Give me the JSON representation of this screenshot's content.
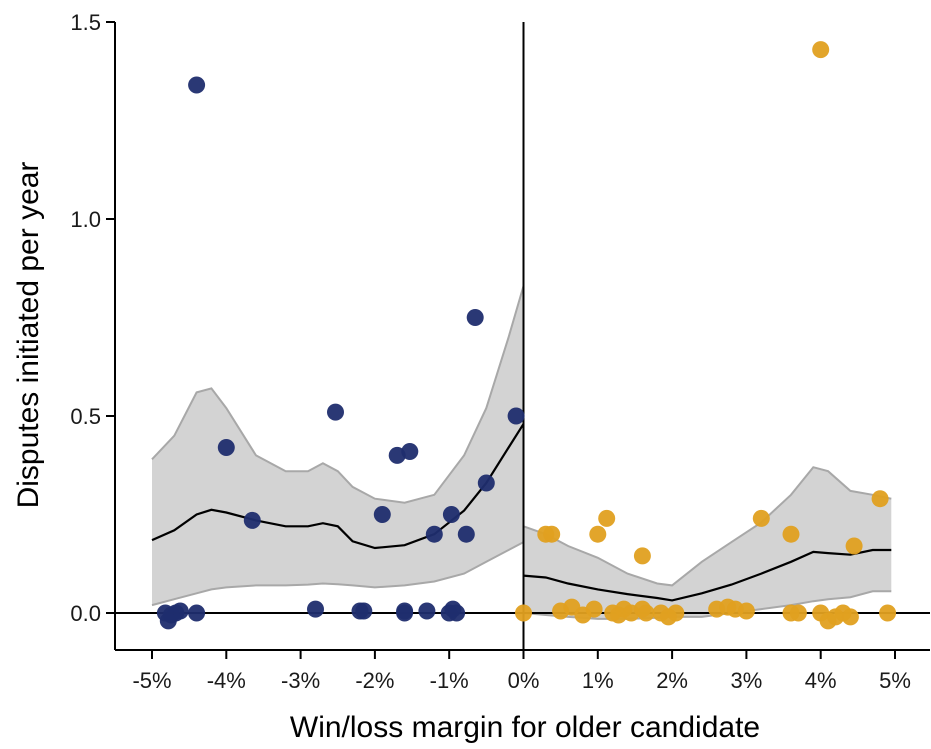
{
  "chart_data": {
    "type": "scatter",
    "title": "",
    "xlabel": "Win/loss margin for older candidate",
    "ylabel": "Disputes initiated per year",
    "xlim": [
      -5.5,
      5.5
    ],
    "ylim": [
      -0.09,
      1.5
    ],
    "x_ticks": [
      -5,
      -4,
      -3,
      -2,
      -1,
      0,
      1,
      2,
      3,
      4,
      5
    ],
    "x_tick_labels": [
      "-5%",
      "-4%",
      "-3%",
      "-2%",
      "-1%",
      "0%",
      "1%",
      "2%",
      "3%",
      "4%",
      "5%"
    ],
    "y_ticks": [
      0.0,
      0.5,
      1.0,
      1.5
    ],
    "y_tick_labels": [
      "0.0",
      "0.5",
      "1.0",
      "1.5"
    ],
    "grid": false,
    "legend": "none",
    "colors": {
      "loss": "#1f2d6e",
      "win": "#e0a020",
      "band_fill": "#d3d3d3",
      "band_edge": "#a8a8a8",
      "fit_line": "#000000"
    },
    "series": [
      {
        "side": "loss",
        "points": [
          [
            -4.4,
            1.34
          ],
          [
            -4.0,
            0.42
          ],
          [
            -3.65,
            0.235
          ],
          [
            -2.53,
            0.51
          ],
          [
            -1.7,
            0.4
          ],
          [
            -1.53,
            0.41
          ],
          [
            -1.9,
            0.25
          ],
          [
            -1.2,
            0.2
          ],
          [
            -0.97,
            0.25
          ],
          [
            -0.77,
            0.2
          ],
          [
            -0.65,
            0.75
          ],
          [
            -0.5,
            0.33
          ],
          [
            -0.1,
            0.5
          ],
          [
            -2.8,
            0.01
          ],
          [
            -2.2,
            0.005
          ],
          [
            -2.15,
            0.005
          ],
          [
            -1.6,
            0.0
          ],
          [
            -1.6,
            0.005
          ],
          [
            -1.3,
            0.005
          ],
          [
            -1.0,
            0.0
          ],
          [
            -0.95,
            0.01
          ],
          [
            -0.9,
            0.0
          ],
          [
            -4.4,
            0.0
          ],
          [
            -4.62,
            0.005
          ],
          [
            -4.68,
            0.0
          ],
          [
            -4.74,
            -0.005
          ],
          [
            -4.78,
            -0.02
          ],
          [
            -4.82,
            0.0
          ]
        ]
      },
      {
        "side": "win",
        "points": [
          [
            4.0,
            1.43
          ],
          [
            0.3,
            0.2
          ],
          [
            0.38,
            0.2
          ],
          [
            1.0,
            0.2
          ],
          [
            1.12,
            0.24
          ],
          [
            1.6,
            0.145
          ],
          [
            3.2,
            0.24
          ],
          [
            3.6,
            0.2
          ],
          [
            4.45,
            0.17
          ],
          [
            4.8,
            0.29
          ],
          [
            0.0,
            0.0
          ],
          [
            0.5,
            0.005
          ],
          [
            0.65,
            0.015
          ],
          [
            0.8,
            -0.005
          ],
          [
            0.95,
            0.01
          ],
          [
            1.2,
            0.0
          ],
          [
            1.28,
            -0.005
          ],
          [
            1.35,
            0.01
          ],
          [
            1.45,
            0.0
          ],
          [
            1.6,
            0.01
          ],
          [
            1.65,
            0.0
          ],
          [
            1.85,
            0.0
          ],
          [
            1.95,
            -0.01
          ],
          [
            2.05,
            0.0
          ],
          [
            2.6,
            0.01
          ],
          [
            2.75,
            0.015
          ],
          [
            2.85,
            0.01
          ],
          [
            3.0,
            0.005
          ],
          [
            3.6,
            0.0
          ],
          [
            3.7,
            0.0
          ],
          [
            4.0,
            0.0
          ],
          [
            4.1,
            -0.02
          ],
          [
            4.2,
            -0.01
          ],
          [
            4.3,
            0.0
          ],
          [
            4.4,
            -0.01
          ],
          [
            4.9,
            0.0
          ]
        ]
      }
    ],
    "fit_left": {
      "x": [
        -5.0,
        -4.7,
        -4.4,
        -4.2,
        -4.0,
        -3.6,
        -3.2,
        -2.9,
        -2.7,
        -2.5,
        -2.3,
        -2.0,
        -1.6,
        -1.2,
        -0.8,
        -0.5,
        -0.2,
        0.0
      ],
      "y": [
        0.185,
        0.21,
        0.25,
        0.262,
        0.255,
        0.235,
        0.22,
        0.22,
        0.228,
        0.22,
        0.182,
        0.165,
        0.172,
        0.2,
        0.26,
        0.33,
        0.42,
        0.48
      ],
      "lower": [
        0.02,
        0.035,
        0.05,
        0.06,
        0.065,
        0.07,
        0.07,
        0.072,
        0.075,
        0.073,
        0.07,
        0.065,
        0.07,
        0.08,
        0.1,
        0.13,
        0.16,
        0.18
      ],
      "upper": [
        0.39,
        0.45,
        0.56,
        0.57,
        0.52,
        0.4,
        0.36,
        0.36,
        0.38,
        0.36,
        0.32,
        0.29,
        0.28,
        0.3,
        0.4,
        0.52,
        0.7,
        0.83
      ]
    },
    "fit_right": {
      "x": [
        0.0,
        0.3,
        0.6,
        1.0,
        1.4,
        1.8,
        2.0,
        2.4,
        2.8,
        3.2,
        3.6,
        3.9,
        4.1,
        4.4,
        4.7,
        4.95
      ],
      "y": [
        0.095,
        0.09,
        0.075,
        0.06,
        0.048,
        0.038,
        0.032,
        0.05,
        0.072,
        0.1,
        0.13,
        0.155,
        0.152,
        0.148,
        0.16,
        0.16
      ],
      "lower": [
        0.0,
        -0.005,
        -0.01,
        -0.015,
        -0.015,
        -0.012,
        -0.01,
        -0.01,
        0.0,
        0.01,
        0.02,
        0.03,
        0.035,
        0.04,
        0.055,
        0.055
      ],
      "upper": [
        0.22,
        0.2,
        0.17,
        0.14,
        0.1,
        0.075,
        0.07,
        0.13,
        0.18,
        0.23,
        0.3,
        0.37,
        0.36,
        0.31,
        0.3,
        0.29
      ]
    }
  }
}
